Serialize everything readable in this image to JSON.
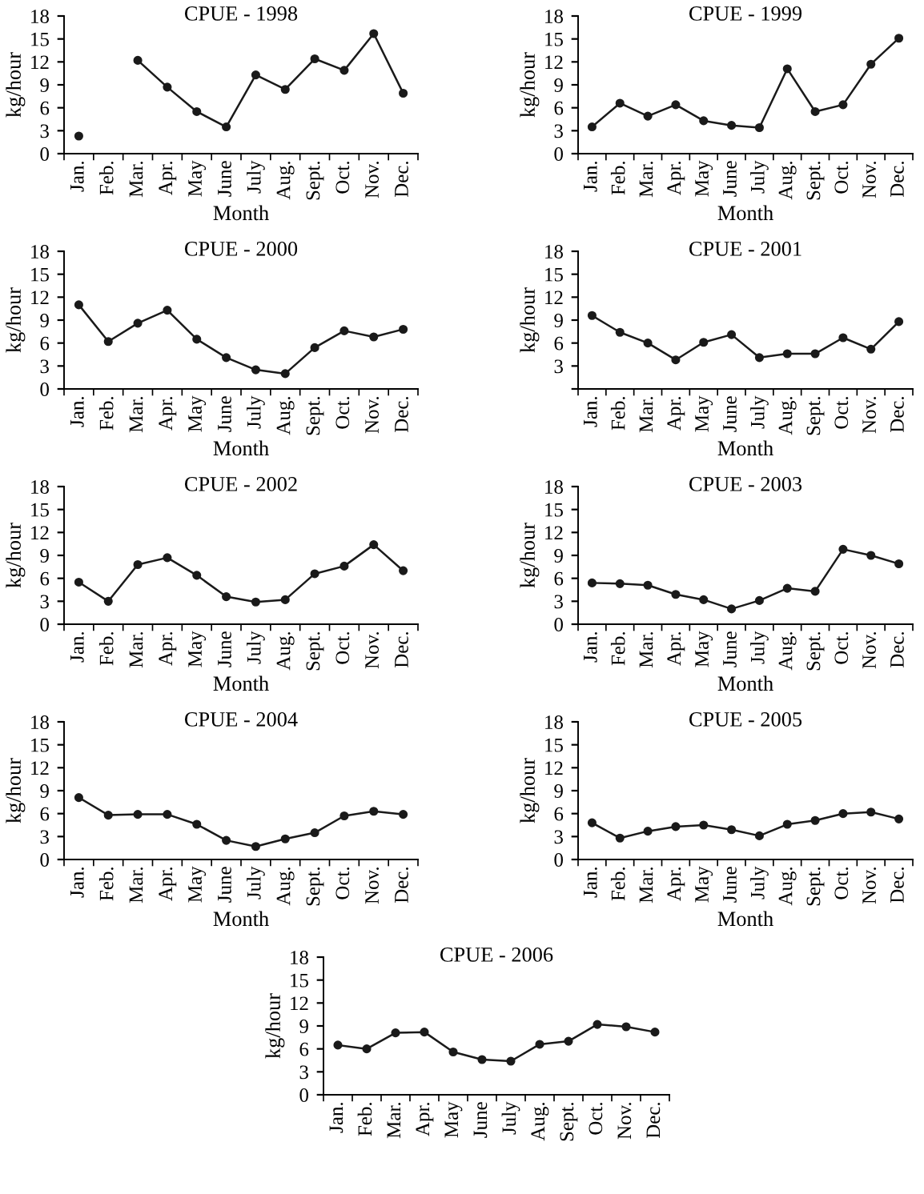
{
  "chart_data": [
    {
      "type": "line",
      "title": "CPUE - 1998",
      "xlabel": "Month",
      "ylabel": "kg/hour",
      "categories": [
        "Jan.",
        "Feb.",
        "Mar.",
        "Apr.",
        "May",
        "June",
        "July",
        "Aug.",
        "Sept.",
        "Oct.",
        "Nov.",
        "Dec."
      ],
      "series": [
        {
          "color": "#1a1a1a",
          "values": [
            2.3,
            null,
            12.2,
            8.7,
            5.5,
            3.5,
            10.3,
            8.4,
            12.4,
            10.9,
            15.7,
            7.9
          ]
        }
      ],
      "ylim": [
        0,
        18
      ],
      "yticks": [
        0,
        3,
        6,
        9,
        12,
        15,
        18
      ],
      "marker": "circle",
      "line_style": "solid",
      "grid": false
    },
    {
      "type": "line",
      "title": "CPUE - 1999",
      "xlabel": "Month",
      "ylabel": "kg/hour",
      "categories": [
        "Jan.",
        "Feb.",
        "Mar.",
        "Apr.",
        "May",
        "June",
        "July",
        "Aug.",
        "Sept.",
        "Oct.",
        "Nov.",
        "Dec."
      ],
      "series": [
        {
          "color": "#1a1a1a",
          "values": [
            3.5,
            6.6,
            4.9,
            6.4,
            4.3,
            3.7,
            3.4,
            11.1,
            5.5,
            6.4,
            11.7,
            15.1
          ]
        }
      ],
      "ylim": [
        0,
        18
      ],
      "yticks": [
        0,
        3,
        6,
        9,
        12,
        15,
        18
      ],
      "marker": "circle",
      "line_style": "solid",
      "grid": false
    },
    {
      "type": "line",
      "title": "CPUE - 2000",
      "xlabel": "Month",
      "ylabel": "kg/hour",
      "categories": [
        "Jan.",
        "Feb.",
        "Mar.",
        "Apr.",
        "May",
        "June",
        "July",
        "Aug.",
        "Sept.",
        "Oct.",
        "Nov.",
        "Dec."
      ],
      "series": [
        {
          "color": "#1a1a1a",
          "values": [
            11.0,
            6.2,
            8.6,
            10.3,
            6.5,
            4.1,
            2.5,
            2.0,
            5.4,
            7.6,
            6.8,
            7.8
          ]
        }
      ],
      "ylim": [
        0,
        18
      ],
      "yticks": [
        0,
        3,
        6,
        9,
        12,
        15,
        18
      ],
      "marker": "circle",
      "line_style": "solid",
      "grid": false
    },
    {
      "type": "line",
      "title": "CPUE - 2001",
      "xlabel": "Month",
      "ylabel": "kg/hour",
      "categories": [
        "Jan.",
        "Feb.",
        "Mar.",
        "Apr.",
        "May",
        "June",
        "July",
        "Aug.",
        "Sept.",
        "Oct.",
        "Nov.",
        "Dec."
      ],
      "series": [
        {
          "color": "#1a1a1a",
          "values": [
            9.6,
            7.4,
            6.0,
            3.8,
            6.1,
            7.1,
            4.1,
            4.6,
            4.6,
            6.7,
            5.2,
            8.8
          ]
        }
      ],
      "ylim": [
        0,
        18
      ],
      "yticks": [
        {
          "value": 0,
          "label": null
        },
        3,
        6,
        9,
        12,
        15,
        18
      ],
      "marker": "circle",
      "line_style": "solid",
      "grid": false
    },
    {
      "type": "line",
      "title": "CPUE - 2002",
      "xlabel": "Month",
      "ylabel": "kg/hour",
      "categories": [
        "Jan.",
        "Feb.",
        "Mar.",
        "Apr.",
        "May",
        "June",
        "July",
        "Aug.",
        "Sept.",
        "Oct.",
        "Nov.",
        "Dec."
      ],
      "series": [
        {
          "color": "#1a1a1a",
          "values": [
            5.5,
            3.0,
            7.8,
            8.7,
            6.4,
            3.6,
            2.9,
            3.2,
            6.6,
            7.6,
            10.4,
            7.0
          ]
        }
      ],
      "ylim": [
        0,
        18
      ],
      "yticks": [
        0,
        3,
        6,
        9,
        12,
        15,
        18
      ],
      "marker": "circle",
      "line_style": "solid",
      "grid": false
    },
    {
      "type": "line",
      "title": "CPUE - 2003",
      "xlabel": "Month",
      "ylabel": "kg/hour",
      "categories": [
        "Jan.",
        "Feb.",
        "Mar.",
        "Apr.",
        "May",
        "June",
        "July",
        "Aug.",
        "Sept.",
        "Oct.",
        "Nov.",
        "Dec."
      ],
      "series": [
        {
          "color": "#1a1a1a",
          "values": [
            5.4,
            5.3,
            5.1,
            3.9,
            3.2,
            2.0,
            3.1,
            4.7,
            4.3,
            9.8,
            9.0,
            7.9
          ]
        }
      ],
      "ylim": [
        0,
        18
      ],
      "yticks": [
        0,
        3,
        6,
        9,
        12,
        15,
        18
      ],
      "marker": "circle",
      "line_style": "solid",
      "grid": false
    },
    {
      "type": "line",
      "title": "CPUE - 2004",
      "xlabel": "Month",
      "ylabel": "kg/hour",
      "categories": [
        "Jan.",
        "Feb.",
        "Mar.",
        "Apr.",
        "May",
        "June",
        "July",
        "Aug.",
        "Sept.",
        "Oct.",
        "Nov.",
        "Dec."
      ],
      "series": [
        {
          "color": "#1a1a1a",
          "values": [
            8.1,
            5.8,
            5.9,
            5.9,
            4.6,
            2.5,
            1.7,
            2.7,
            3.5,
            5.7,
            6.3,
            5.9
          ]
        }
      ],
      "ylim": [
        0,
        18
      ],
      "yticks": [
        0,
        3,
        6,
        9,
        12,
        15,
        18
      ],
      "marker": "circle",
      "line_style": "solid",
      "grid": false
    },
    {
      "type": "line",
      "title": "CPUE - 2005",
      "xlabel": "Month",
      "ylabel": "kg/hour",
      "categories": [
        "Jan.",
        "Feb.",
        "Mar.",
        "Apr.",
        "May",
        "June",
        "July",
        "Aug.",
        "Sept.",
        "Oct.",
        "Nov.",
        "Dec."
      ],
      "series": [
        {
          "color": "#1a1a1a",
          "values": [
            4.8,
            2.8,
            3.7,
            4.3,
            4.5,
            3.9,
            3.1,
            4.6,
            5.1,
            6.0,
            6.2,
            5.3
          ]
        }
      ],
      "ylim": [
        0,
        18
      ],
      "yticks": [
        0,
        3,
        6,
        9,
        12,
        15,
        18
      ],
      "marker": "circle",
      "line_style": "solid",
      "grid": false
    },
    {
      "type": "line",
      "title": "CPUE - 2006",
      "ylabel": "kg/hour",
      "categories": [
        "Jan.",
        "Feb.",
        "Mar.",
        "Apr.",
        "May",
        "June",
        "July",
        "Aug.",
        "Sept.",
        "Oct.",
        "Nov.",
        "Dec."
      ],
      "series": [
        {
          "color": "#1a1a1a",
          "values": [
            6.5,
            6.0,
            8.1,
            8.2,
            5.6,
            4.6,
            4.4,
            6.6,
            7.0,
            9.2,
            8.9,
            8.2
          ]
        }
      ],
      "ylim": [
        0,
        18
      ],
      "yticks": [
        0,
        3,
        6,
        9,
        12,
        15,
        18
      ],
      "marker": "circle",
      "line_style": "solid",
      "grid": false
    }
  ]
}
